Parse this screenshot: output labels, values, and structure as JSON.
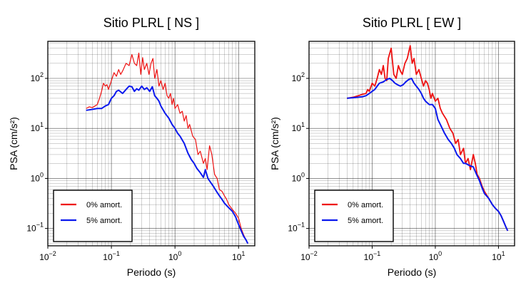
{
  "chart_data": [
    {
      "type": "line",
      "title": "Sitio PLRL [ NS ]",
      "xlabel": "Periodo (s)",
      "ylabel": "PSA (cm/s²)",
      "xscale": "log",
      "yscale": "log",
      "xlim": [
        0.01,
        18
      ],
      "ylim": [
        0.045,
        550
      ],
      "grid": true,
      "legend_position": "bottom-left",
      "x_ticks": [
        {
          "value": 0.01,
          "base": "10",
          "exp": "−2"
        },
        {
          "value": 0.1,
          "base": "10",
          "exp": "−1"
        },
        {
          "value": 1,
          "base": "10",
          "exp": "0"
        },
        {
          "value": 10,
          "base": "10",
          "exp": "1"
        }
      ],
      "y_ticks": [
        {
          "value": 0.1,
          "base": "10",
          "exp": "−1"
        },
        {
          "value": 1,
          "base": "10",
          "exp": "0"
        },
        {
          "value": 10,
          "base": "10",
          "exp": "1"
        },
        {
          "value": 100,
          "base": "10",
          "exp": "2"
        }
      ],
      "series": [
        {
          "name": "0% amort.",
          "color": "#ee1111",
          "points": [
            [
              0.04,
              25
            ],
            [
              0.045,
              27
            ],
            [
              0.05,
              26
            ],
            [
              0.055,
              28
            ],
            [
              0.06,
              30
            ],
            [
              0.065,
              40
            ],
            [
              0.07,
              55
            ],
            [
              0.075,
              80
            ],
            [
              0.08,
              70
            ],
            [
              0.085,
              75
            ],
            [
              0.09,
              60
            ],
            [
              0.1,
              90
            ],
            [
              0.11,
              130
            ],
            [
              0.12,
              110
            ],
            [
              0.13,
              150
            ],
            [
              0.14,
              120
            ],
            [
              0.15,
              140
            ],
            [
              0.17,
              200
            ],
            [
              0.19,
              180
            ],
            [
              0.21,
              300
            ],
            [
              0.23,
              200
            ],
            [
              0.25,
              180
            ],
            [
              0.27,
              320
            ],
            [
              0.29,
              120
            ],
            [
              0.31,
              260
            ],
            [
              0.33,
              150
            ],
            [
              0.36,
              200
            ],
            [
              0.39,
              120
            ],
            [
              0.42,
              200
            ],
            [
              0.45,
              250
            ],
            [
              0.48,
              100
            ],
            [
              0.52,
              150
            ],
            [
              0.56,
              70
            ],
            [
              0.6,
              90
            ],
            [
              0.65,
              60
            ],
            [
              0.7,
              80
            ],
            [
              0.75,
              45
            ],
            [
              0.8,
              40
            ],
            [
              0.85,
              50
            ],
            [
              0.9,
              30
            ],
            [
              0.95,
              40
            ],
            [
              1.0,
              25
            ],
            [
              1.1,
              30
            ],
            [
              1.2,
              20
            ],
            [
              1.3,
              22
            ],
            [
              1.4,
              14
            ],
            [
              1.5,
              18
            ],
            [
              1.6,
              10
            ],
            [
              1.7,
              12
            ],
            [
              1.9,
              7
            ],
            [
              2.1,
              6
            ],
            [
              2.3,
              3
            ],
            [
              2.5,
              3.5
            ],
            [
              2.8,
              2
            ],
            [
              3.0,
              2.5
            ],
            [
              3.2,
              1.5
            ],
            [
              3.5,
              4.5
            ],
            [
              3.8,
              3
            ],
            [
              4.2,
              1.2
            ],
            [
              4.6,
              1.0
            ],
            [
              5.0,
              0.6
            ],
            [
              5.5,
              0.55
            ],
            [
              6.0,
              0.45
            ],
            [
              6.5,
              0.38
            ],
            [
              7.0,
              0.3
            ],
            [
              8.0,
              0.24
            ],
            [
              9.0,
              0.2
            ],
            [
              10.0,
              0.16
            ],
            [
              11.0,
              0.1
            ],
            [
              12.0,
              0.075
            ],
            [
              13.0,
              0.06
            ],
            [
              14.0,
              0.05
            ]
          ]
        },
        {
          "name": "5% amort.",
          "color": "#0a18ee",
          "points": [
            [
              0.04,
              23
            ],
            [
              0.05,
              24
            ],
            [
              0.06,
              25
            ],
            [
              0.07,
              25
            ],
            [
              0.08,
              28
            ],
            [
              0.09,
              30
            ],
            [
              0.1,
              40
            ],
            [
              0.11,
              45
            ],
            [
              0.12,
              55
            ],
            [
              0.13,
              58
            ],
            [
              0.15,
              50
            ],
            [
              0.17,
              60
            ],
            [
              0.19,
              70
            ],
            [
              0.21,
              68
            ],
            [
              0.23,
              55
            ],
            [
              0.25,
              62
            ],
            [
              0.27,
              58
            ],
            [
              0.3,
              70
            ],
            [
              0.33,
              60
            ],
            [
              0.36,
              65
            ],
            [
              0.4,
              55
            ],
            [
              0.44,
              68
            ],
            [
              0.48,
              45
            ],
            [
              0.52,
              40
            ],
            [
              0.56,
              35
            ],
            [
              0.6,
              28
            ],
            [
              0.7,
              20
            ],
            [
              0.8,
              16
            ],
            [
              0.9,
              12
            ],
            [
              1.0,
              10
            ],
            [
              1.1,
              8
            ],
            [
              1.2,
              7
            ],
            [
              1.4,
              5
            ],
            [
              1.6,
              3.2
            ],
            [
              1.8,
              2.4
            ],
            [
              2.0,
              2.0
            ],
            [
              2.2,
              1.6
            ],
            [
              2.5,
              1.3
            ],
            [
              2.8,
              1.05
            ],
            [
              3.0,
              1.5
            ],
            [
              3.3,
              1.0
            ],
            [
              3.6,
              0.85
            ],
            [
              4.0,
              0.7
            ],
            [
              4.5,
              0.55
            ],
            [
              5.0,
              0.45
            ],
            [
              5.5,
              0.38
            ],
            [
              6.0,
              0.32
            ],
            [
              7.0,
              0.26
            ],
            [
              8.0,
              0.22
            ],
            [
              9.0,
              0.17
            ],
            [
              10.0,
              0.12
            ],
            [
              11.0,
              0.09
            ],
            [
              12.0,
              0.07
            ],
            [
              13.0,
              0.06
            ],
            [
              14.0,
              0.05
            ]
          ]
        }
      ]
    },
    {
      "type": "line",
      "title": "Sitio PLRL [ EW ]",
      "xlabel": "Periodo (s)",
      "ylabel": "PSA (cm/s²)",
      "xscale": "log",
      "yscale": "log",
      "xlim": [
        0.01,
        18
      ],
      "ylim": [
        0.045,
        550
      ],
      "grid": true,
      "legend_position": "bottom-left",
      "x_ticks": [
        {
          "value": 0.01,
          "base": "10",
          "exp": "−2"
        },
        {
          "value": 0.1,
          "base": "10",
          "exp": "−1"
        },
        {
          "value": 1,
          "base": "10",
          "exp": "0"
        },
        {
          "value": 10,
          "base": "10",
          "exp": "1"
        }
      ],
      "y_ticks": [
        {
          "value": 0.1,
          "base": "10",
          "exp": "−1"
        },
        {
          "value": 1,
          "base": "10",
          "exp": "0"
        },
        {
          "value": 10,
          "base": "10",
          "exp": "1"
        },
        {
          "value": 100,
          "base": "10",
          "exp": "2"
        }
      ],
      "series": [
        {
          "name": "0% amort.",
          "color": "#ee1111",
          "points": [
            [
              0.04,
              40
            ],
            [
              0.05,
              42
            ],
            [
              0.06,
              45
            ],
            [
              0.07,
              48
            ],
            [
              0.08,
              50
            ],
            [
              0.085,
              60
            ],
            [
              0.09,
              55
            ],
            [
              0.1,
              80
            ],
            [
              0.11,
              70
            ],
            [
              0.12,
              100
            ],
            [
              0.13,
              150
            ],
            [
              0.14,
              120
            ],
            [
              0.15,
              180
            ],
            [
              0.16,
              100
            ],
            [
              0.17,
              90
            ],
            [
              0.18,
              250
            ],
            [
              0.2,
              400
            ],
            [
              0.22,
              120
            ],
            [
              0.24,
              100
            ],
            [
              0.26,
              180
            ],
            [
              0.28,
              140
            ],
            [
              0.3,
              120
            ],
            [
              0.33,
              200
            ],
            [
              0.36,
              250
            ],
            [
              0.4,
              450
            ],
            [
              0.43,
              200
            ],
            [
              0.46,
              250
            ],
            [
              0.5,
              120
            ],
            [
              0.55,
              150
            ],
            [
              0.6,
              100
            ],
            [
              0.65,
              70
            ],
            [
              0.7,
              90
            ],
            [
              0.75,
              80
            ],
            [
              0.8,
              60
            ],
            [
              0.85,
              40
            ],
            [
              0.9,
              50
            ],
            [
              1.0,
              35
            ],
            [
              1.1,
              40
            ],
            [
              1.2,
              25
            ],
            [
              1.3,
              20
            ],
            [
              1.5,
              15
            ],
            [
              1.7,
              10
            ],
            [
              1.9,
              8
            ],
            [
              2.1,
              5
            ],
            [
              2.3,
              6
            ],
            [
              2.5,
              3
            ],
            [
              2.8,
              4
            ],
            [
              3.0,
              2.0
            ],
            [
              3.3,
              2.5
            ],
            [
              3.6,
              1.5
            ],
            [
              4.0,
              3.0
            ],
            [
              4.3,
              2.0
            ],
            [
              4.6,
              1.2
            ],
            [
              5.0,
              1.0
            ],
            [
              5.5,
              0.7
            ],
            [
              6.0,
              0.55
            ],
            [
              7.0,
              0.4
            ],
            [
              8.0,
              0.3
            ],
            [
              9.0,
              0.25
            ],
            [
              10.0,
              0.22
            ],
            [
              11.0,
              0.18
            ],
            [
              12.0,
              0.14
            ],
            [
              13.0,
              0.11
            ],
            [
              14.0,
              0.09
            ]
          ]
        },
        {
          "name": "5% amort.",
          "color": "#0a18ee",
          "points": [
            [
              0.04,
              40
            ],
            [
              0.05,
              41
            ],
            [
              0.06,
              42
            ],
            [
              0.07,
              43
            ],
            [
              0.08,
              45
            ],
            [
              0.09,
              50
            ],
            [
              0.1,
              55
            ],
            [
              0.11,
              60
            ],
            [
              0.12,
              70
            ],
            [
              0.13,
              80
            ],
            [
              0.15,
              85
            ],
            [
              0.17,
              95
            ],
            [
              0.19,
              100
            ],
            [
              0.21,
              90
            ],
            [
              0.23,
              80
            ],
            [
              0.25,
              75
            ],
            [
              0.28,
              70
            ],
            [
              0.31,
              75
            ],
            [
              0.34,
              85
            ],
            [
              0.38,
              95
            ],
            [
              0.42,
              100
            ],
            [
              0.46,
              80
            ],
            [
              0.5,
              70
            ],
            [
              0.55,
              60
            ],
            [
              0.6,
              50
            ],
            [
              0.65,
              40
            ],
            [
              0.7,
              35
            ],
            [
              0.8,
              30
            ],
            [
              0.9,
              30
            ],
            [
              1.0,
              25
            ],
            [
              1.1,
              15
            ],
            [
              1.2,
              12
            ],
            [
              1.4,
              8
            ],
            [
              1.6,
              6
            ],
            [
              1.8,
              5
            ],
            [
              2.0,
              4
            ],
            [
              2.2,
              3
            ],
            [
              2.5,
              2.5
            ],
            [
              2.8,
              2.0
            ],
            [
              3.0,
              2.0
            ],
            [
              3.5,
              1.8
            ],
            [
              4.0,
              1.7
            ],
            [
              4.5,
              1.2
            ],
            [
              5.0,
              0.9
            ],
            [
              5.5,
              0.65
            ],
            [
              6.0,
              0.5
            ],
            [
              7.0,
              0.4
            ],
            [
              8.0,
              0.3
            ],
            [
              9.0,
              0.25
            ],
            [
              10.0,
              0.22
            ],
            [
              11.0,
              0.18
            ],
            [
              12.0,
              0.14
            ],
            [
              13.0,
              0.11
            ],
            [
              14.0,
              0.09
            ]
          ]
        }
      ]
    }
  ]
}
